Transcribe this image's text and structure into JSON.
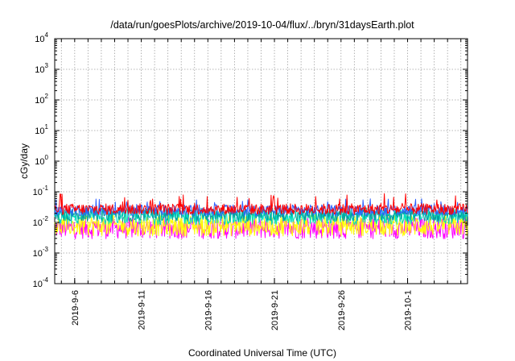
{
  "chart_data": {
    "type": "line",
    "title": "/data/run/goesPlots/archive/2019-10-04/flux/../bryn/31daysEarth.plot",
    "xlabel": "Coordinated Universal Time (UTC)",
    "ylabel": "cGy/day",
    "y_scale": "log",
    "ylim": [
      0.0001,
      10000
    ],
    "y_ticks": [
      {
        "base": "10",
        "exp": "-4"
      },
      {
        "base": "10",
        "exp": "-3"
      },
      {
        "base": "10",
        "exp": "-2"
      },
      {
        "base": "10",
        "exp": "-1"
      },
      {
        "base": "10",
        "exp": "0"
      },
      {
        "base": "10",
        "exp": "1"
      },
      {
        "base": "10",
        "exp": "2"
      },
      {
        "base": "10",
        "exp": "3"
      },
      {
        "base": "10",
        "exp": "4"
      }
    ],
    "xlim": [
      "2019-09-04T12:00",
      "2019-10-05T12:00"
    ],
    "x_tick_labels": [
      "2019-9-6",
      "2019-9-11",
      "2019-9-16",
      "2019-9-21",
      "2019-9-26",
      "2019-10-1"
    ],
    "x_tick_dates": [
      "2019-09-06",
      "2019-09-11",
      "2019-09-16",
      "2019-09-21",
      "2019-09-26",
      "2019-10-01"
    ],
    "grid": true,
    "legend": "none",
    "series": [
      {
        "color": "#ff0000",
        "baseline": 0.027,
        "variability": 0.18,
        "spike_prob": 0.06,
        "spike_max": 0.09
      },
      {
        "color": "#3060ff",
        "baseline": 0.025,
        "variability": 0.18,
        "spike_prob": 0.05,
        "spike_max": 0.06
      },
      {
        "color": "#00a0a0",
        "baseline": 0.018,
        "variability": 0.22,
        "spike_prob": 0.03,
        "spike_max": 0.03
      },
      {
        "color": "#00e0c0",
        "baseline": 0.015,
        "variability": 0.25,
        "spike_prob": 0.02,
        "spike_max": 0.025
      },
      {
        "color": "#ffff00",
        "baseline": 0.008,
        "variability": 0.35,
        "spike_prob": 0.03,
        "spike_max": 0.02
      },
      {
        "color": "#ff00ff",
        "baseline": 0.0065,
        "variability": 0.35,
        "spike_prob": 0.04,
        "spike_max": 0.02
      }
    ]
  }
}
